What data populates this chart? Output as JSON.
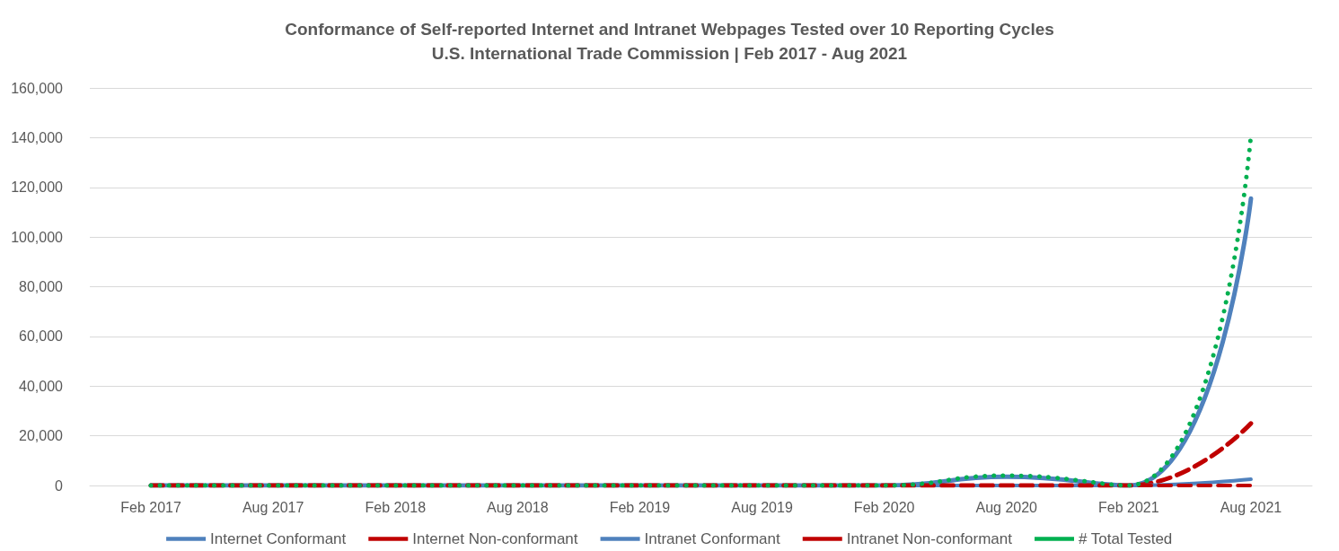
{
  "chart_data": {
    "type": "line",
    "title": "Conformance of Self-reported Internet and Intranet Webpages Tested over 10 Reporting Cycles",
    "subtitle": "U.S. International Trade Commission | Feb 2017 - Aug 2021",
    "categories": [
      "Feb 2017",
      "Aug 2017",
      "Feb 2018",
      "Aug 2018",
      "Feb 2019",
      "Aug 2019",
      "Feb 2020",
      "Aug 2020",
      "Feb 2021",
      "Aug 2021"
    ],
    "series": [
      {
        "name": "Internet Conformant",
        "color": "#4f81bd",
        "line_style": "solid",
        "values": [
          0,
          0,
          0,
          0,
          0,
          0,
          0,
          3500,
          0,
          115500
        ]
      },
      {
        "name": "Internet Non-conformant",
        "color": "#c00000",
        "line_style": "dashed",
        "values": [
          0,
          0,
          0,
          0,
          0,
          0,
          0,
          0,
          0,
          25000
        ]
      },
      {
        "name": "Intranet Conformant",
        "color": "#4f81bd",
        "line_style": "solid",
        "values": [
          0,
          0,
          0,
          0,
          0,
          0,
          0,
          0,
          0,
          2500
        ]
      },
      {
        "name": "Intranet Non-conformant",
        "color": "#c00000",
        "line_style": "dashed",
        "values": [
          0,
          0,
          0,
          0,
          0,
          0,
          0,
          0,
          0,
          0
        ]
      },
      {
        "name": "# Total Tested",
        "color": "#00b050",
        "line_style": "dotted",
        "values": [
          0,
          0,
          0,
          0,
          0,
          0,
          0,
          4000,
          0,
          141000
        ]
      }
    ],
    "ylim": [
      0,
      160000
    ],
    "yticks": [
      0,
      {
        "value": 20000,
        "label": "20,000"
      },
      {
        "value": 40000,
        "label": "40,000"
      },
      {
        "value": 60000,
        "label": "60,000"
      },
      {
        "value": 80000,
        "label": "80,000"
      },
      {
        "value": 100000,
        "label": "100,000"
      },
      {
        "value": 120000,
        "label": "120,000"
      },
      {
        "value": 140000,
        "label": "140,000"
      },
      {
        "value": 160000,
        "label": "160,000"
      }
    ],
    "grid": "y",
    "legend": "bottom",
    "marker": "none"
  }
}
